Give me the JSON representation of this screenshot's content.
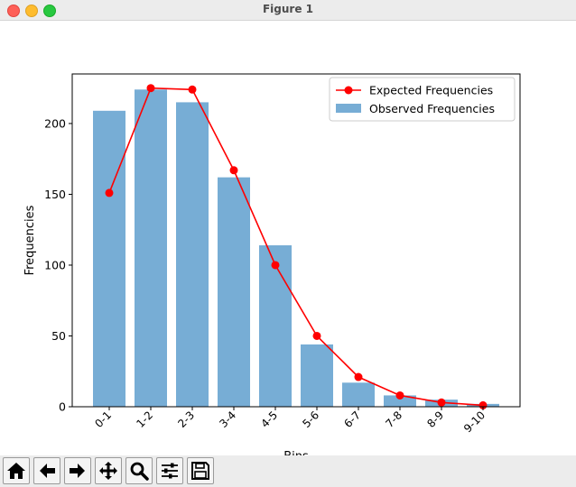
{
  "window": {
    "title": "Figure 1"
  },
  "toolbar": {
    "buttons": [
      {
        "name": "home-icon"
      },
      {
        "name": "back-arrow-icon"
      },
      {
        "name": "forward-arrow-icon"
      },
      {
        "name": "pan-move-icon"
      },
      {
        "name": "zoom-magnifier-icon"
      },
      {
        "name": "configure-subplots-icon"
      },
      {
        "name": "save-floppy-icon"
      }
    ]
  },
  "chart_data": {
    "type": "bar",
    "title": "",
    "xlabel": "Bins",
    "ylabel": "Frequencies",
    "ylim": [
      0,
      235
    ],
    "yticks": [
      0,
      50,
      100,
      150,
      200
    ],
    "categories": [
      "0-1",
      "1-2",
      "2-3",
      "3-4",
      "4-5",
      "5-6",
      "6-7",
      "7-8",
      "8-9",
      "9-10"
    ],
    "series": [
      {
        "name": "Observed Frequencies",
        "type": "bar",
        "color": "#77add5",
        "values": [
          209,
          224,
          215,
          162,
          114,
          44,
          17,
          8,
          5,
          2
        ]
      },
      {
        "name": "Expected Frequencies",
        "type": "line",
        "color": "#ff0000",
        "values": [
          151,
          225,
          224,
          167,
          100,
          50,
          21,
          8,
          3,
          1
        ]
      }
    ],
    "grid": false,
    "legend": "top-right"
  }
}
